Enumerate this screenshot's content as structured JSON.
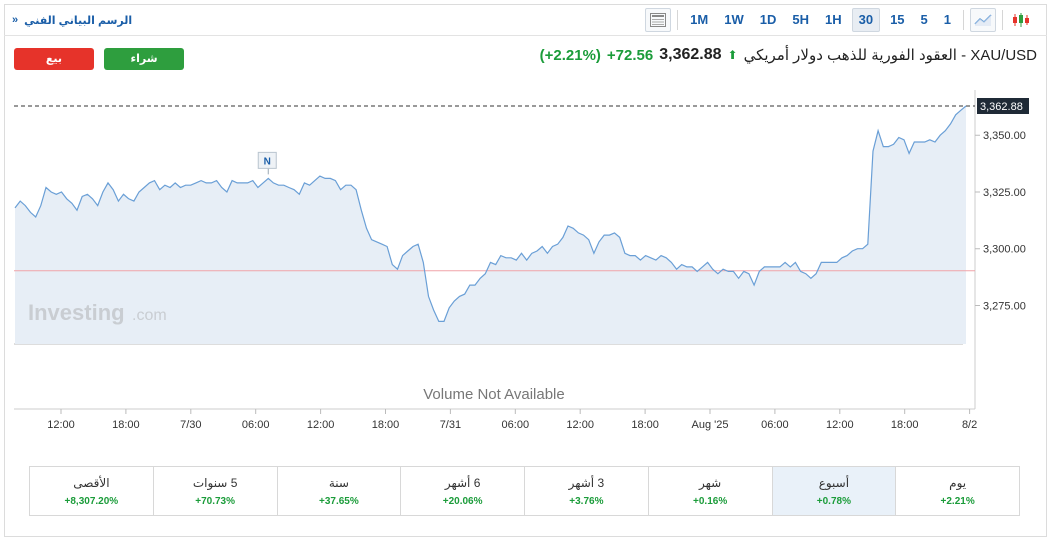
{
  "toolbar": {
    "title": "الرسم البياني الفني",
    "title_arrow": "»",
    "timeframes": [
      "1M",
      "1W",
      "1D",
      "5H",
      "1H",
      "30",
      "15",
      "5",
      "1"
    ],
    "active_timeframe": "30",
    "icons": [
      "candlestick-chart-icon",
      "line-chart-icon",
      "layout-icon"
    ]
  },
  "header": {
    "name": "XAU/USD - العقود الفورية للذهب دولار أمريكي",
    "price": "3,362.88",
    "change": "+72.56",
    "change_pct": "(+2.21%)",
    "trend": "up"
  },
  "buttons": {
    "sell": "بيع",
    "buy": "شراء"
  },
  "colors": {
    "accent": "#1a5ea8",
    "up": "#1b9c3a",
    "sell": "#e6332a",
    "buy": "#2e9e3e",
    "line": "#6a9fd6",
    "fill": "#e7eef6",
    "prev_close": "#f0a3a8"
  },
  "chart_data": {
    "type": "area",
    "title": "",
    "xlabel": "",
    "ylabel": "",
    "ylim": [
      3255,
      3368
    ],
    "yticks": [
      "3,275.00",
      "3,300.00",
      "3,325.00",
      "3,350.00"
    ],
    "ytick_values": [
      3275,
      3300,
      3325,
      3350
    ],
    "xtick_labels": [
      "12:00",
      "18:00",
      "7/30",
      "06:00",
      "12:00",
      "18:00",
      "7/31",
      "06:00",
      "12:00",
      "18:00",
      "Aug '25",
      "06:00",
      "12:00",
      "18:00",
      "8/2"
    ],
    "last_price_label": "3,362.88",
    "last_price": 3362.88,
    "reference_line": 3290.3,
    "news_marker": {
      "label": "N",
      "index": 49
    },
    "volume_text": "Volume Not Available",
    "watermark": "Investing",
    "watermark_suffix": ".com",
    "grid": false,
    "legend": "none",
    "series": [
      {
        "values": [
          3318,
          3321,
          3319,
          3316,
          3314,
          3319,
          3327,
          3325,
          3324,
          3325,
          3322,
          3320,
          3317,
          3323,
          3324,
          3322,
          3319,
          3325,
          3329,
          3326,
          3321,
          3324,
          3322,
          3321,
          3325,
          3327,
          3329,
          3330,
          3326,
          3328,
          3327,
          3329,
          3327,
          3328,
          3328,
          3329,
          3330,
          3329,
          3329,
          3330,
          3327,
          3325,
          3330,
          3329,
          3329,
          3329,
          3330,
          3327,
          3329,
          3331,
          3329,
          3328,
          3328,
          3327,
          3326,
          3324,
          3329,
          3328,
          3330,
          3332,
          3331,
          3331,
          3330,
          3326,
          3328,
          3328,
          3326,
          3317,
          3309,
          3304,
          3303,
          3302,
          3301,
          3293,
          3291,
          3297,
          3299,
          3301,
          3302,
          3294,
          3279,
          3273,
          3268,
          3268,
          3274,
          3277,
          3279,
          3280,
          3284,
          3284,
          3287,
          3289,
          3294,
          3293,
          3297,
          3296,
          3296,
          3295,
          3298,
          3295,
          3298,
          3299,
          3301,
          3298,
          3301,
          3302,
          3305,
          3310,
          3309,
          3307,
          3306,
          3304,
          3298,
          3303,
          3306,
          3306,
          3307,
          3305,
          3298,
          3297,
          3297,
          3295,
          3297,
          3296,
          3295,
          3297,
          3296,
          3294,
          3291,
          3293,
          3292,
          3292,
          3290,
          3292,
          3294,
          3291,
          3289,
          3291,
          3290,
          3290,
          3287,
          3290,
          3289,
          3284,
          3290,
          3292,
          3292,
          3292,
          3292,
          3294,
          3292,
          3294,
          3290,
          3289,
          3287,
          3289,
          3294,
          3294,
          3294,
          3294,
          3296,
          3297,
          3299,
          3300,
          3300,
          3302,
          3343,
          3352,
          3345,
          3345,
          3346,
          3349,
          3348,
          3342,
          3347,
          3347,
          3347,
          3348,
          3347,
          3350,
          3352,
          3355,
          3359,
          3361,
          3362.88
        ]
      }
    ]
  },
  "performance": [
    {
      "label": "يوم",
      "value": "+2.21%",
      "active": false
    },
    {
      "label": "أسبوع",
      "value": "+0.78%",
      "active": true
    },
    {
      "label": "شهر",
      "value": "+0.16%",
      "active": false
    },
    {
      "label": "3 أشهر",
      "value": "+3.76%",
      "active": false
    },
    {
      "label": "6 أشهر",
      "value": "+20.06%",
      "active": false
    },
    {
      "label": "سنة",
      "value": "+37.65%",
      "active": false
    },
    {
      "label": "5 سنوات",
      "value": "+70.73%",
      "active": false
    },
    {
      "label": "الأقصى",
      "value": "+8,307.20%",
      "active": false
    }
  ]
}
